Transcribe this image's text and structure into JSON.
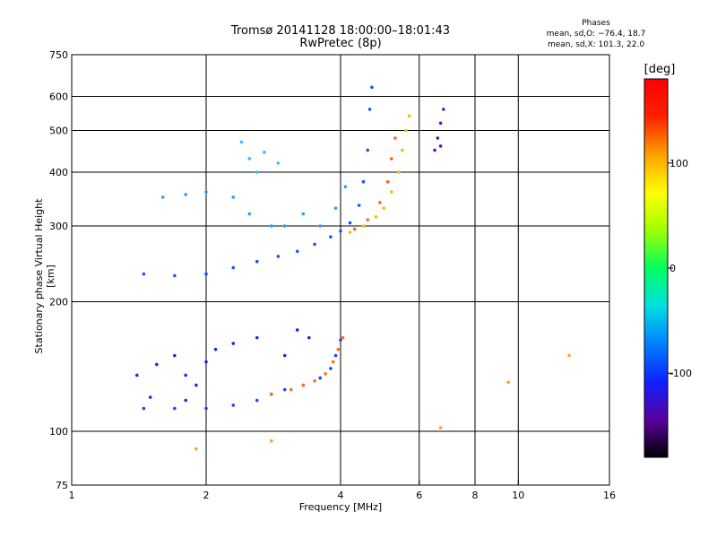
{
  "chart_data": {
    "type": "scatter",
    "title": "Tromsø 20141128 18:00:00–18:01:43",
    "subtitle": "RwPretec (8p)",
    "xlabel": "Frequency [MHz]",
    "ylabel": "Stationary phase Virtual Height [km]",
    "x_scale": "log",
    "y_scale": "log",
    "xlim": [
      1,
      16
    ],
    "ylim": [
      75,
      750
    ],
    "x_ticks": [
      1,
      2,
      4,
      6,
      8,
      10,
      16
    ],
    "y_ticks": [
      75,
      100,
      200,
      300,
      400,
      500,
      600,
      750
    ],
    "grid": true,
    "stats": {
      "heading": "Phases",
      "line_o": "mean, sd,O: −76.4, 18.7",
      "line_x": "mean, sd,X: 101.3, 22.0"
    },
    "colorbar": {
      "label": "[deg]",
      "range": [
        -180,
        180
      ],
      "ticks": [
        100,
        0,
        -100
      ],
      "colors": [
        "#000000",
        "#5a00a0",
        "#1020ff",
        "#0080ff",
        "#00e0e0",
        "#00ff60",
        "#a0ff00",
        "#ffff00",
        "#ffa000",
        "#ff2000",
        "#ff0000"
      ]
    },
    "series": [
      {
        "color": "#2040ff",
        "points": [
          [
            1.45,
            113
          ],
          [
            1.7,
            113
          ],
          [
            2.0,
            113
          ],
          [
            2.3,
            115
          ],
          [
            2.6,
            118
          ],
          [
            2.8,
            122
          ],
          [
            3.0,
            125
          ],
          [
            3.3,
            128
          ],
          [
            3.6,
            133
          ],
          [
            3.8,
            140
          ],
          [
            3.9,
            150
          ],
          [
            4.0,
            163
          ]
        ]
      },
      {
        "color": "#ff7010",
        "points": [
          [
            2.8,
            122
          ],
          [
            3.1,
            125
          ],
          [
            3.3,
            128
          ],
          [
            3.5,
            131
          ],
          [
            3.7,
            136
          ],
          [
            3.85,
            145
          ],
          [
            3.95,
            155
          ],
          [
            4.05,
            165
          ]
        ]
      },
      {
        "color": "#1030e0",
        "points": [
          [
            1.55,
            143
          ],
          [
            1.7,
            150
          ],
          [
            1.8,
            135
          ],
          [
            1.9,
            128
          ],
          [
            2.0,
            145
          ],
          [
            2.1,
            155
          ],
          [
            2.3,
            160
          ],
          [
            2.6,
            165
          ],
          [
            3.0,
            150
          ],
          [
            3.2,
            172
          ],
          [
            3.4,
            165
          ],
          [
            1.4,
            135
          ],
          [
            1.5,
            120
          ],
          [
            1.8,
            118
          ]
        ]
      },
      {
        "color": "#1a50ff",
        "points": [
          [
            1.45,
            232
          ],
          [
            1.7,
            230
          ],
          [
            2.0,
            232
          ],
          [
            2.3,
            240
          ],
          [
            2.6,
            248
          ],
          [
            2.9,
            255
          ],
          [
            3.2,
            262
          ],
          [
            3.5,
            272
          ],
          [
            3.8,
            283
          ],
          [
            4.0,
            292
          ],
          [
            4.2,
            305
          ],
          [
            4.4,
            335
          ],
          [
            4.5,
            380
          ],
          [
            4.6,
            450
          ],
          [
            4.65,
            560
          ],
          [
            4.7,
            630
          ]
        ]
      },
      {
        "color": "#20a0ff",
        "points": [
          [
            1.6,
            350
          ],
          [
            1.8,
            355
          ],
          [
            2.0,
            360
          ],
          [
            2.3,
            350
          ],
          [
            2.5,
            320
          ],
          [
            2.8,
            300
          ],
          [
            3.0,
            300
          ],
          [
            3.3,
            320
          ],
          [
            3.6,
            300
          ],
          [
            3.9,
            330
          ],
          [
            4.1,
            370
          ]
        ]
      },
      {
        "color": "#f0c000",
        "points": [
          [
            4.2,
            290
          ],
          [
            4.5,
            300
          ],
          [
            4.8,
            315
          ],
          [
            5.0,
            330
          ],
          [
            5.2,
            360
          ],
          [
            5.4,
            400
          ],
          [
            5.5,
            450
          ],
          [
            5.6,
            500
          ],
          [
            5.7,
            540
          ]
        ]
      },
      {
        "color": "#ff6020",
        "points": [
          [
            4.3,
            295
          ],
          [
            4.6,
            310
          ],
          [
            4.9,
            340
          ],
          [
            5.1,
            380
          ],
          [
            5.2,
            430
          ],
          [
            5.3,
            480
          ]
        ]
      },
      {
        "color": "#6010c0",
        "points": [
          [
            6.5,
            450
          ],
          [
            6.6,
            480
          ],
          [
            6.7,
            520
          ],
          [
            6.8,
            560
          ],
          [
            6.7,
            460
          ]
        ]
      },
      {
        "color": "#30c0ff",
        "points": [
          [
            2.5,
            430
          ],
          [
            2.7,
            445
          ],
          [
            2.9,
            420
          ],
          [
            2.4,
            470
          ],
          [
            2.6,
            400
          ]
        ]
      },
      {
        "color": "#ffa020",
        "points": [
          [
            1.9,
            91
          ],
          [
            2.8,
            95
          ],
          [
            6.7,
            102
          ],
          [
            9.5,
            130
          ],
          [
            13,
            150
          ]
        ]
      }
    ]
  }
}
